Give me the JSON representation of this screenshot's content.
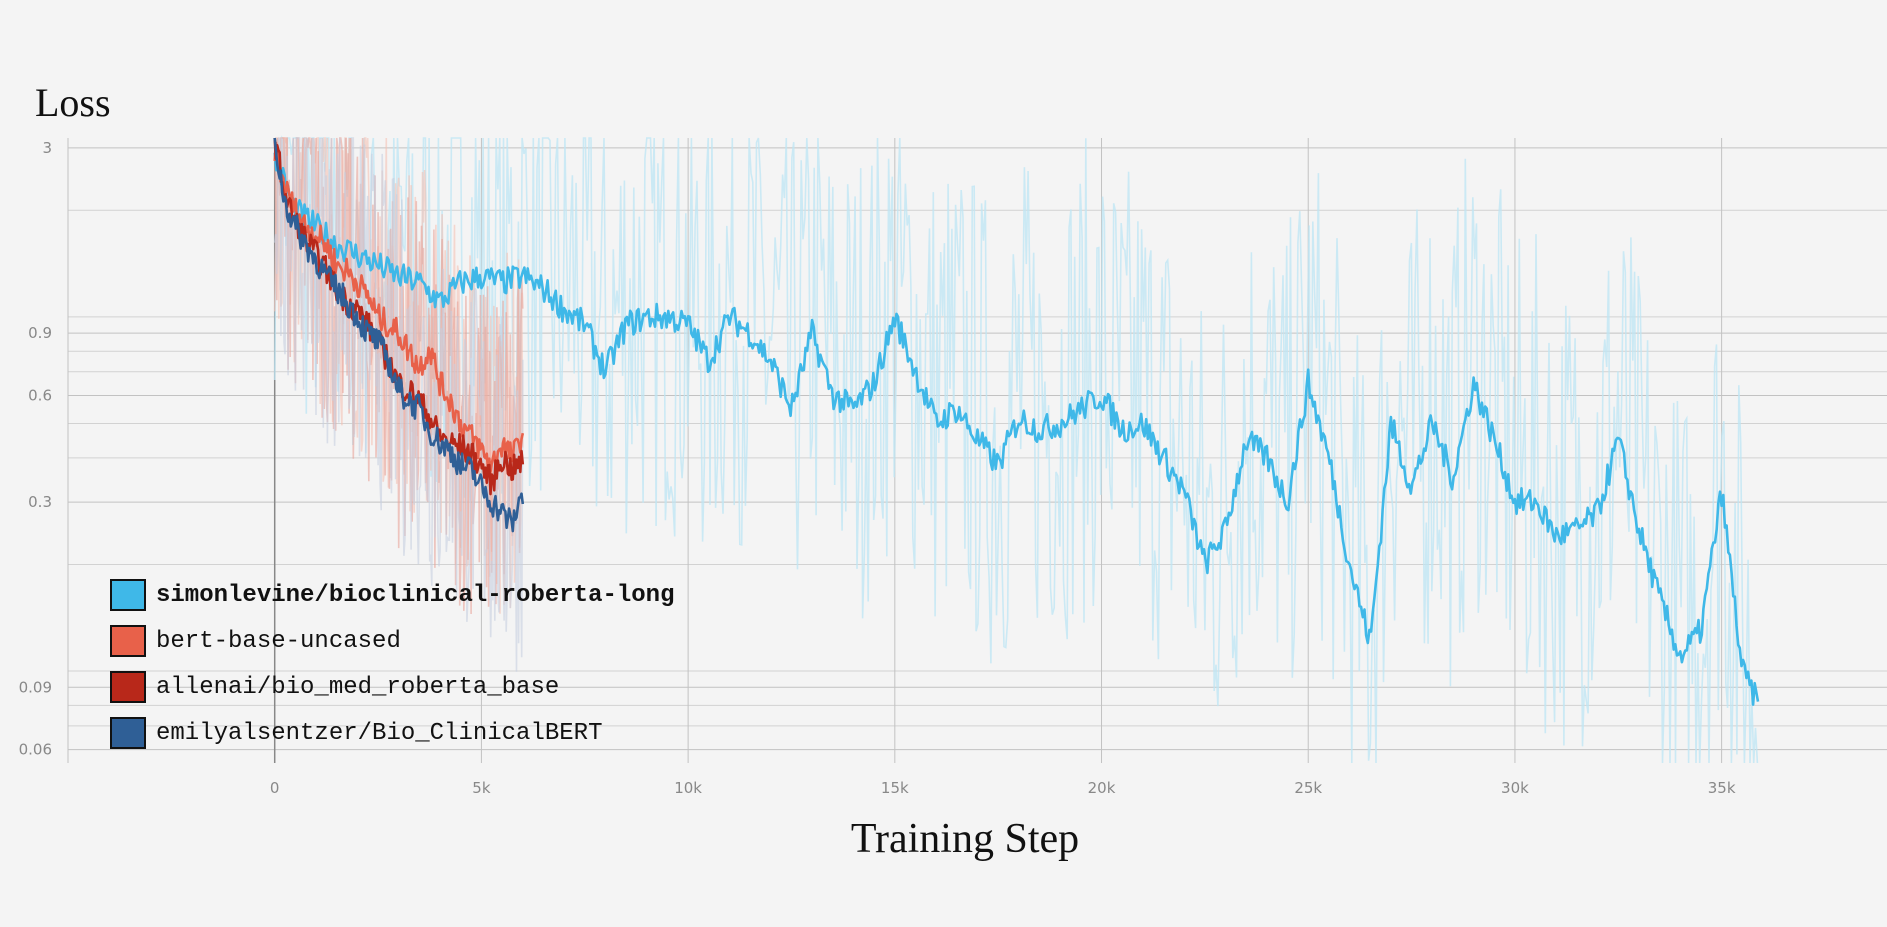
{
  "chart_data": {
    "type": "line",
    "ylabel": "Loss",
    "xlabel": "Training Step",
    "y_scale": "log",
    "ylim": [
      0.055,
      3.2
    ],
    "xlim": [
      -5000,
      39000
    ],
    "y_ticks": [
      {
        "value": 3,
        "label": "3"
      },
      {
        "value": 0.9,
        "label": "0.9"
      },
      {
        "value": 0.6,
        "label": "0.6"
      },
      {
        "value": 0.3,
        "label": "0.3"
      },
      {
        "value": 0.09,
        "label": "0.09"
      },
      {
        "value": 0.06,
        "label": "0.06"
      }
    ],
    "y_minor_grid": [
      2,
      1,
      0.8,
      0.7,
      0.5,
      0.4,
      0.2,
      0.1,
      0.08,
      0.07
    ],
    "x_ticks": [
      {
        "value": 0,
        "label": "0"
      },
      {
        "value": 5000,
        "label": "5k"
      },
      {
        "value": 10000,
        "label": "10k"
      },
      {
        "value": 15000,
        "label": "15k"
      },
      {
        "value": 20000,
        "label": "20k"
      },
      {
        "value": 25000,
        "label": "25k"
      },
      {
        "value": 30000,
        "label": "30k"
      },
      {
        "value": 35000,
        "label": "35k"
      }
    ],
    "series": [
      {
        "name": "simonlevine/bioclinical-roberta-long",
        "color": "#3fb8e8",
        "raw_color": "#bde6f4",
        "bold": true,
        "x": [
          0,
          500,
          1000,
          1500,
          2000,
          2500,
          3000,
          3500,
          4000,
          4500,
          5000,
          5500,
          6000,
          6500,
          7000,
          7500,
          8000,
          8500,
          9000,
          9500,
          10000,
          10500,
          11000,
          11500,
          12000,
          12500,
          13000,
          13500,
          14000,
          14500,
          15000,
          15500,
          16000,
          16500,
          17000,
          17500,
          18000,
          18500,
          19000,
          19500,
          20000,
          20500,
          21000,
          21500,
          22000,
          22500,
          23000,
          23500,
          24000,
          24500,
          25000,
          25500,
          26000,
          26500,
          27000,
          27500,
          28000,
          28500,
          29000,
          29500,
          30000,
          30500,
          31000,
          31500,
          32000,
          32500,
          33000,
          33500,
          34000,
          34500,
          35000,
          35500,
          35900
        ],
        "y": [
          2.8,
          2.0,
          1.8,
          1.6,
          1.5,
          1.4,
          1.3,
          1.25,
          1.1,
          1.25,
          1.3,
          1.25,
          1.3,
          1.2,
          1.05,
          0.95,
          0.7,
          0.95,
          1.0,
          1.0,
          0.95,
          0.75,
          1.0,
          0.9,
          0.75,
          0.55,
          0.9,
          0.6,
          0.55,
          0.65,
          1.0,
          0.7,
          0.5,
          0.55,
          0.45,
          0.38,
          0.52,
          0.48,
          0.5,
          0.55,
          0.6,
          0.48,
          0.5,
          0.4,
          0.32,
          0.2,
          0.25,
          0.45,
          0.4,
          0.3,
          0.65,
          0.4,
          0.2,
          0.12,
          0.5,
          0.33,
          0.5,
          0.35,
          0.65,
          0.45,
          0.3,
          0.3,
          0.24,
          0.25,
          0.28,
          0.45,
          0.25,
          0.16,
          0.11,
          0.13,
          0.32,
          0.1,
          0.08
        ]
      },
      {
        "name": "bert-base-uncased",
        "color": "#e8614a",
        "raw_color": "#f3c2b4",
        "bold": false,
        "x": [
          0,
          250,
          500,
          750,
          1000,
          1250,
          1500,
          1750,
          2000,
          2250,
          2500,
          2750,
          3000,
          3250,
          3500,
          3750,
          4000,
          4250,
          4500,
          4750,
          5000,
          5250,
          5500,
          5750,
          6000
        ],
        "y": [
          3.0,
          2.3,
          2.0,
          1.8,
          1.7,
          1.6,
          1.4,
          1.35,
          1.25,
          1.15,
          1.0,
          0.95,
          0.9,
          0.8,
          0.72,
          0.82,
          0.65,
          0.58,
          0.5,
          0.46,
          0.42,
          0.38,
          0.44,
          0.4,
          0.47
        ]
      },
      {
        "name": "allenai/bio_med_roberta_base",
        "color": "#b8281a",
        "raw_color": "#e8a39a",
        "bold": false,
        "x": [
          0,
          250,
          500,
          750,
          1000,
          1250,
          1500,
          1750,
          2000,
          2250,
          2500,
          2750,
          3000,
          3250,
          3500,
          3750,
          4000,
          4250,
          4500,
          4750,
          5000,
          5250,
          5500,
          5750,
          6000
        ],
        "y": [
          3.2,
          2.2,
          1.85,
          1.65,
          1.5,
          1.35,
          1.2,
          1.1,
          1.05,
          0.95,
          0.85,
          0.75,
          0.65,
          0.62,
          0.58,
          0.52,
          0.46,
          0.44,
          0.43,
          0.41,
          0.38,
          0.34,
          0.4,
          0.37,
          0.39
        ]
      },
      {
        "name": "emilyalsentzer/Bio_ClinicalBERT",
        "color": "#2f5f96",
        "raw_color": "#c7cfe0",
        "bold": false,
        "x": [
          0,
          250,
          500,
          750,
          1000,
          1250,
          1500,
          1750,
          2000,
          2250,
          2500,
          2750,
          3000,
          3250,
          3500,
          3750,
          4000,
          4250,
          4500,
          4750,
          5000,
          5250,
          5500,
          5750,
          6000
        ],
        "y": [
          3.1,
          2.1,
          1.8,
          1.6,
          1.45,
          1.3,
          1.2,
          1.1,
          1.0,
          0.9,
          0.85,
          0.75,
          0.62,
          0.58,
          0.55,
          0.48,
          0.44,
          0.42,
          0.38,
          0.37,
          0.33,
          0.3,
          0.28,
          0.26,
          0.32
        ]
      }
    ]
  }
}
